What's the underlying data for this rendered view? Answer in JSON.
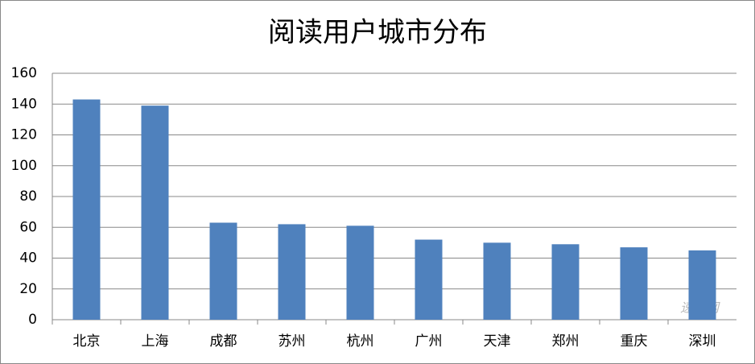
{
  "chart_data": {
    "type": "bar",
    "title": "阅读用户城市分布",
    "categories": [
      "北京",
      "上海",
      "成都",
      "苏州",
      "杭州",
      "广州",
      "天津",
      "郑州",
      "重庆",
      "深圳"
    ],
    "values": [
      143,
      139,
      63,
      62,
      61,
      52,
      50,
      49,
      47,
      45
    ],
    "color": "#4f81bd",
    "ylim": [
      0,
      160
    ],
    "yticks": [
      0,
      20,
      40,
      60,
      80,
      100,
      120,
      140,
      160
    ],
    "grid": true,
    "watermark": "速途网"
  }
}
